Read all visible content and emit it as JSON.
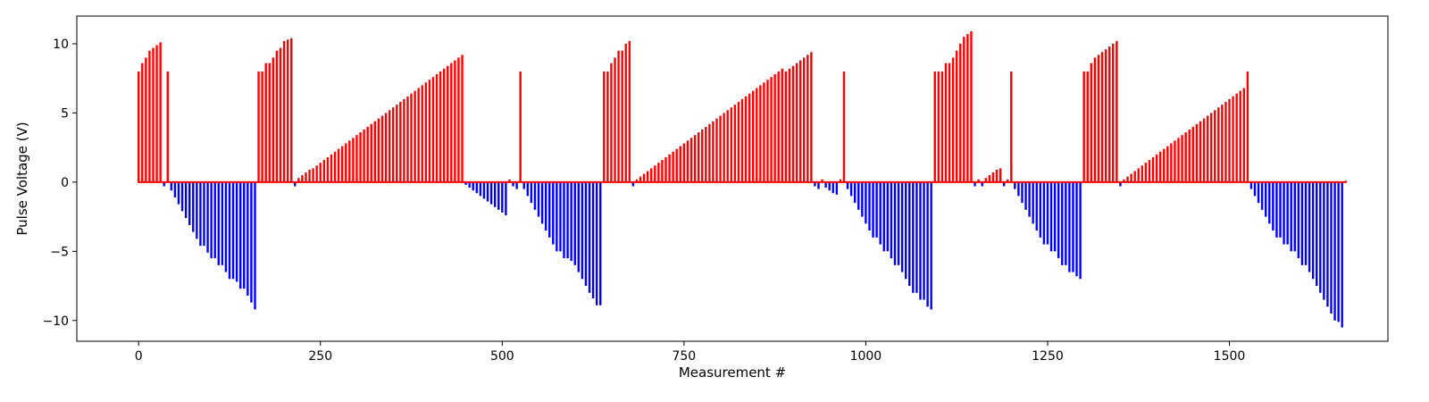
{
  "chart_data": {
    "type": "bar",
    "title": "",
    "xlabel": "Measurement #",
    "ylabel": "Pulse Voltage (V)",
    "xlim": [
      -85,
      1718
    ],
    "ylim": [
      -11.5,
      12
    ],
    "xticks": [
      0,
      250,
      500,
      750,
      1000,
      1250,
      1500
    ],
    "yticks": [
      -10,
      -5,
      0,
      5,
      10
    ],
    "grid": false,
    "legend": "none",
    "colors": {
      "positive": "#ff0000",
      "negative": "#0000ff",
      "frame": "#000000"
    },
    "bars": [
      {
        "x": 0,
        "y": 8.0
      },
      {
        "x": 5,
        "y": 8.6
      },
      {
        "x": 10,
        "y": 9.0
      },
      {
        "x": 15,
        "y": 9.5
      },
      {
        "x": 20,
        "y": 9.7
      },
      {
        "x": 25,
        "y": 9.9
      },
      {
        "x": 30,
        "y": 10.1
      },
      {
        "x": 35,
        "y": -0.3
      },
      {
        "x": 40,
        "y": 8.0
      },
      {
        "x": 45,
        "y": -0.6
      },
      {
        "x": 50,
        "y": -1.1
      },
      {
        "x": 55,
        "y": -1.6
      },
      {
        "x": 60,
        "y": -2.1
      },
      {
        "x": 65,
        "y": -2.6
      },
      {
        "x": 70,
        "y": -3.1
      },
      {
        "x": 75,
        "y": -3.6
      },
      {
        "x": 80,
        "y": -4.1
      },
      {
        "x": 85,
        "y": -4.6
      },
      {
        "x": 90,
        "y": -4.6
      },
      {
        "x": 95,
        "y": -5.1
      },
      {
        "x": 100,
        "y": -5.5
      },
      {
        "x": 105,
        "y": -5.5
      },
      {
        "x": 110,
        "y": -6.0
      },
      {
        "x": 115,
        "y": -6.0
      },
      {
        "x": 120,
        "y": -6.5
      },
      {
        "x": 125,
        "y": -7.0
      },
      {
        "x": 130,
        "y": -7.0
      },
      {
        "x": 135,
        "y": -7.2
      },
      {
        "x": 140,
        "y": -7.7
      },
      {
        "x": 145,
        "y": -7.7
      },
      {
        "x": 150,
        "y": -8.2
      },
      {
        "x": 155,
        "y": -8.7
      },
      {
        "x": 160,
        "y": -9.2
      },
      {
        "x": 165,
        "y": 8.0
      },
      {
        "x": 170,
        "y": 8.0
      },
      {
        "x": 175,
        "y": 8.6
      },
      {
        "x": 180,
        "y": 8.6
      },
      {
        "x": 185,
        "y": 9.0
      },
      {
        "x": 190,
        "y": 9.5
      },
      {
        "x": 195,
        "y": 9.7
      },
      {
        "x": 200,
        "y": 10.2
      },
      {
        "x": 205,
        "y": 10.3
      },
      {
        "x": 210,
        "y": 10.4
      },
      {
        "x": 215,
        "y": -0.3
      },
      {
        "x": 220,
        "y": 0.3
      },
      {
        "x": 225,
        "y": 0.5
      },
      {
        "x": 230,
        "y": 0.7
      },
      {
        "x": 235,
        "y": 0.9
      },
      {
        "x": 240,
        "y": 1.0
      },
      {
        "x": 245,
        "y": 1.2
      },
      {
        "x": 250,
        "y": 1.4
      },
      {
        "x": 255,
        "y": 1.6
      },
      {
        "x": 260,
        "y": 1.8
      },
      {
        "x": 265,
        "y": 2.0
      },
      {
        "x": 270,
        "y": 2.2
      },
      {
        "x": 275,
        "y": 2.4
      },
      {
        "x": 280,
        "y": 2.6
      },
      {
        "x": 285,
        "y": 2.8
      },
      {
        "x": 290,
        "y": 3.0
      },
      {
        "x": 295,
        "y": 3.2
      },
      {
        "x": 300,
        "y": 3.4
      },
      {
        "x": 305,
        "y": 3.6
      },
      {
        "x": 310,
        "y": 3.8
      },
      {
        "x": 315,
        "y": 4.0
      },
      {
        "x": 320,
        "y": 4.2
      },
      {
        "x": 325,
        "y": 4.4
      },
      {
        "x": 330,
        "y": 4.6
      },
      {
        "x": 335,
        "y": 4.8
      },
      {
        "x": 340,
        "y": 5.0
      },
      {
        "x": 345,
        "y": 5.2
      },
      {
        "x": 350,
        "y": 5.4
      },
      {
        "x": 355,
        "y": 5.6
      },
      {
        "x": 360,
        "y": 5.8
      },
      {
        "x": 365,
        "y": 6.0
      },
      {
        "x": 370,
        "y": 6.2
      },
      {
        "x": 375,
        "y": 6.4
      },
      {
        "x": 380,
        "y": 6.6
      },
      {
        "x": 385,
        "y": 6.8
      },
      {
        "x": 390,
        "y": 7.0
      },
      {
        "x": 395,
        "y": 7.2
      },
      {
        "x": 400,
        "y": 7.4
      },
      {
        "x": 405,
        "y": 7.6
      },
      {
        "x": 410,
        "y": 7.8
      },
      {
        "x": 415,
        "y": 8.0
      },
      {
        "x": 420,
        "y": 8.2
      },
      {
        "x": 425,
        "y": 8.4
      },
      {
        "x": 430,
        "y": 8.6
      },
      {
        "x": 435,
        "y": 8.8
      },
      {
        "x": 440,
        "y": 9.0
      },
      {
        "x": 445,
        "y": 9.2
      },
      {
        "x": 450,
        "y": -0.2
      },
      {
        "x": 455,
        "y": -0.4
      },
      {
        "x": 460,
        "y": -0.6
      },
      {
        "x": 465,
        "y": -0.8
      },
      {
        "x": 470,
        "y": -1.0
      },
      {
        "x": 475,
        "y": -1.2
      },
      {
        "x": 480,
        "y": -1.4
      },
      {
        "x": 485,
        "y": -1.6
      },
      {
        "x": 490,
        "y": -1.8
      },
      {
        "x": 495,
        "y": -2.0
      },
      {
        "x": 500,
        "y": -2.2
      },
      {
        "x": 505,
        "y": -2.4
      },
      {
        "x": 510,
        "y": 0.2
      },
      {
        "x": 515,
        "y": -0.3
      },
      {
        "x": 520,
        "y": -0.5
      },
      {
        "x": 525,
        "y": 8.0
      },
      {
        "x": 530,
        "y": -0.5
      },
      {
        "x": 535,
        "y": -1.0
      },
      {
        "x": 540,
        "y": -1.5
      },
      {
        "x": 545,
        "y": -2.0
      },
      {
        "x": 550,
        "y": -2.5
      },
      {
        "x": 555,
        "y": -3.0
      },
      {
        "x": 560,
        "y": -3.5
      },
      {
        "x": 565,
        "y": -4.0
      },
      {
        "x": 570,
        "y": -4.5
      },
      {
        "x": 575,
        "y": -5.0
      },
      {
        "x": 580,
        "y": -5.0
      },
      {
        "x": 585,
        "y": -5.5
      },
      {
        "x": 590,
        "y": -5.5
      },
      {
        "x": 595,
        "y": -5.7
      },
      {
        "x": 600,
        "y": -6.0
      },
      {
        "x": 605,
        "y": -6.5
      },
      {
        "x": 610,
        "y": -7.0
      },
      {
        "x": 615,
        "y": -7.5
      },
      {
        "x": 620,
        "y": -8.0
      },
      {
        "x": 625,
        "y": -8.4
      },
      {
        "x": 630,
        "y": -8.9
      },
      {
        "x": 635,
        "y": -8.9
      },
      {
        "x": 640,
        "y": 8.0
      },
      {
        "x": 645,
        "y": 8.0
      },
      {
        "x": 650,
        "y": 8.6
      },
      {
        "x": 655,
        "y": 9.0
      },
      {
        "x": 660,
        "y": 9.5
      },
      {
        "x": 665,
        "y": 9.5
      },
      {
        "x": 670,
        "y": 10.0
      },
      {
        "x": 675,
        "y": 10.2
      },
      {
        "x": 680,
        "y": -0.3
      },
      {
        "x": 685,
        "y": 0.2
      },
      {
        "x": 690,
        "y": 0.4
      },
      {
        "x": 695,
        "y": 0.6
      },
      {
        "x": 700,
        "y": 0.8
      },
      {
        "x": 705,
        "y": 1.0
      },
      {
        "x": 710,
        "y": 1.2
      },
      {
        "x": 715,
        "y": 1.4
      },
      {
        "x": 720,
        "y": 1.6
      },
      {
        "x": 725,
        "y": 1.8
      },
      {
        "x": 730,
        "y": 2.0
      },
      {
        "x": 735,
        "y": 2.2
      },
      {
        "x": 740,
        "y": 2.4
      },
      {
        "x": 745,
        "y": 2.6
      },
      {
        "x": 750,
        "y": 2.8
      },
      {
        "x": 755,
        "y": 3.0
      },
      {
        "x": 760,
        "y": 3.2
      },
      {
        "x": 765,
        "y": 3.4
      },
      {
        "x": 770,
        "y": 3.6
      },
      {
        "x": 775,
        "y": 3.8
      },
      {
        "x": 780,
        "y": 4.0
      },
      {
        "x": 785,
        "y": 4.2
      },
      {
        "x": 790,
        "y": 4.4
      },
      {
        "x": 795,
        "y": 4.6
      },
      {
        "x": 800,
        "y": 4.8
      },
      {
        "x": 805,
        "y": 5.0
      },
      {
        "x": 810,
        "y": 5.2
      },
      {
        "x": 815,
        "y": 5.4
      },
      {
        "x": 820,
        "y": 5.6
      },
      {
        "x": 825,
        "y": 5.8
      },
      {
        "x": 830,
        "y": 6.0
      },
      {
        "x": 835,
        "y": 6.2
      },
      {
        "x": 840,
        "y": 6.4
      },
      {
        "x": 845,
        "y": 6.6
      },
      {
        "x": 850,
        "y": 6.8
      },
      {
        "x": 855,
        "y": 7.0
      },
      {
        "x": 860,
        "y": 7.2
      },
      {
        "x": 865,
        "y": 7.4
      },
      {
        "x": 870,
        "y": 7.6
      },
      {
        "x": 875,
        "y": 7.8
      },
      {
        "x": 880,
        "y": 8.0
      },
      {
        "x": 885,
        "y": 8.2
      },
      {
        "x": 890,
        "y": 8.0
      },
      {
        "x": 895,
        "y": 8.2
      },
      {
        "x": 900,
        "y": 8.4
      },
      {
        "x": 905,
        "y": 8.6
      },
      {
        "x": 910,
        "y": 8.8
      },
      {
        "x": 915,
        "y": 9.0
      },
      {
        "x": 920,
        "y": 9.2
      },
      {
        "x": 925,
        "y": 9.4
      },
      {
        "x": 930,
        "y": -0.3
      },
      {
        "x": 935,
        "y": -0.5
      },
      {
        "x": 940,
        "y": 0.2
      },
      {
        "x": 945,
        "y": -0.4
      },
      {
        "x": 950,
        "y": -0.6
      },
      {
        "x": 955,
        "y": -0.8
      },
      {
        "x": 960,
        "y": -0.9
      },
      {
        "x": 965,
        "y": 0.2
      },
      {
        "x": 970,
        "y": 8.0
      },
      {
        "x": 975,
        "y": -0.5
      },
      {
        "x": 980,
        "y": -1.0
      },
      {
        "x": 985,
        "y": -1.5
      },
      {
        "x": 990,
        "y": -2.0
      },
      {
        "x": 995,
        "y": -2.5
      },
      {
        "x": 1000,
        "y": -3.0
      },
      {
        "x": 1005,
        "y": -3.5
      },
      {
        "x": 1010,
        "y": -4.0
      },
      {
        "x": 1015,
        "y": -4.0
      },
      {
        "x": 1020,
        "y": -4.5
      },
      {
        "x": 1025,
        "y": -5.0
      },
      {
        "x": 1030,
        "y": -5.0
      },
      {
        "x": 1035,
        "y": -5.5
      },
      {
        "x": 1040,
        "y": -6.0
      },
      {
        "x": 1045,
        "y": -6.0
      },
      {
        "x": 1050,
        "y": -6.5
      },
      {
        "x": 1055,
        "y": -7.0
      },
      {
        "x": 1060,
        "y": -7.5
      },
      {
        "x": 1065,
        "y": -8.0
      },
      {
        "x": 1070,
        "y": -8.0
      },
      {
        "x": 1075,
        "y": -8.5
      },
      {
        "x": 1080,
        "y": -8.5
      },
      {
        "x": 1085,
        "y": -9.0
      },
      {
        "x": 1090,
        "y": -9.2
      },
      {
        "x": 1095,
        "y": 8.0
      },
      {
        "x": 1100,
        "y": 8.0
      },
      {
        "x": 1105,
        "y": 8.0
      },
      {
        "x": 1110,
        "y": 8.6
      },
      {
        "x": 1115,
        "y": 8.6
      },
      {
        "x": 1120,
        "y": 9.0
      },
      {
        "x": 1125,
        "y": 9.5
      },
      {
        "x": 1130,
        "y": 10.0
      },
      {
        "x": 1135,
        "y": 10.5
      },
      {
        "x": 1140,
        "y": 10.7
      },
      {
        "x": 1145,
        "y": 10.9
      },
      {
        "x": 1150,
        "y": -0.3
      },
      {
        "x": 1155,
        "y": 0.2
      },
      {
        "x": 1160,
        "y": -0.3
      },
      {
        "x": 1165,
        "y": 0.3
      },
      {
        "x": 1170,
        "y": 0.5
      },
      {
        "x": 1175,
        "y": 0.7
      },
      {
        "x": 1180,
        "y": 0.9
      },
      {
        "x": 1185,
        "y": 1.0
      },
      {
        "x": 1190,
        "y": -0.3
      },
      {
        "x": 1195,
        "y": 0.2
      },
      {
        "x": 1200,
        "y": 8.0
      },
      {
        "x": 1205,
        "y": -0.5
      },
      {
        "x": 1210,
        "y": -1.0
      },
      {
        "x": 1215,
        "y": -1.5
      },
      {
        "x": 1220,
        "y": -2.0
      },
      {
        "x": 1225,
        "y": -2.5
      },
      {
        "x": 1230,
        "y": -3.0
      },
      {
        "x": 1235,
        "y": -3.5
      },
      {
        "x": 1240,
        "y": -4.0
      },
      {
        "x": 1245,
        "y": -4.5
      },
      {
        "x": 1250,
        "y": -4.5
      },
      {
        "x": 1255,
        "y": -5.0
      },
      {
        "x": 1260,
        "y": -5.0
      },
      {
        "x": 1265,
        "y": -5.5
      },
      {
        "x": 1270,
        "y": -6.0
      },
      {
        "x": 1275,
        "y": -6.0
      },
      {
        "x": 1280,
        "y": -6.5
      },
      {
        "x": 1285,
        "y": -6.5
      },
      {
        "x": 1290,
        "y": -6.8
      },
      {
        "x": 1295,
        "y": -7.0
      },
      {
        "x": 1300,
        "y": 8.0
      },
      {
        "x": 1305,
        "y": 8.0
      },
      {
        "x": 1310,
        "y": 8.6
      },
      {
        "x": 1315,
        "y": 9.0
      },
      {
        "x": 1320,
        "y": 9.2
      },
      {
        "x": 1325,
        "y": 9.4
      },
      {
        "x": 1330,
        "y": 9.6
      },
      {
        "x": 1335,
        "y": 9.8
      },
      {
        "x": 1340,
        "y": 10.0
      },
      {
        "x": 1345,
        "y": 10.2
      },
      {
        "x": 1350,
        "y": -0.3
      },
      {
        "x": 1355,
        "y": 0.2
      },
      {
        "x": 1360,
        "y": 0.4
      },
      {
        "x": 1365,
        "y": 0.6
      },
      {
        "x": 1370,
        "y": 0.8
      },
      {
        "x": 1375,
        "y": 1.0
      },
      {
        "x": 1380,
        "y": 1.2
      },
      {
        "x": 1385,
        "y": 1.4
      },
      {
        "x": 1390,
        "y": 1.6
      },
      {
        "x": 1395,
        "y": 1.8
      },
      {
        "x": 1400,
        "y": 2.0
      },
      {
        "x": 1405,
        "y": 2.2
      },
      {
        "x": 1410,
        "y": 2.4
      },
      {
        "x": 1415,
        "y": 2.6
      },
      {
        "x": 1420,
        "y": 2.8
      },
      {
        "x": 1425,
        "y": 3.0
      },
      {
        "x": 1430,
        "y": 3.2
      },
      {
        "x": 1435,
        "y": 3.4
      },
      {
        "x": 1440,
        "y": 3.6
      },
      {
        "x": 1445,
        "y": 3.8
      },
      {
        "x": 1450,
        "y": 4.0
      },
      {
        "x": 1455,
        "y": 4.2
      },
      {
        "x": 1460,
        "y": 4.4
      },
      {
        "x": 1465,
        "y": 4.6
      },
      {
        "x": 1470,
        "y": 4.8
      },
      {
        "x": 1475,
        "y": 5.0
      },
      {
        "x": 1480,
        "y": 5.2
      },
      {
        "x": 1485,
        "y": 5.4
      },
      {
        "x": 1490,
        "y": 5.6
      },
      {
        "x": 1495,
        "y": 5.8
      },
      {
        "x": 1500,
        "y": 6.0
      },
      {
        "x": 1505,
        "y": 6.2
      },
      {
        "x": 1510,
        "y": 6.4
      },
      {
        "x": 1515,
        "y": 6.6
      },
      {
        "x": 1520,
        "y": 6.8
      },
      {
        "x": 1525,
        "y": 8.0
      },
      {
        "x": 1530,
        "y": -0.5
      },
      {
        "x": 1535,
        "y": -1.0
      },
      {
        "x": 1540,
        "y": -1.5
      },
      {
        "x": 1545,
        "y": -2.0
      },
      {
        "x": 1550,
        "y": -2.5
      },
      {
        "x": 1555,
        "y": -3.0
      },
      {
        "x": 1560,
        "y": -3.5
      },
      {
        "x": 1565,
        "y": -4.0
      },
      {
        "x": 1570,
        "y": -4.0
      },
      {
        "x": 1575,
        "y": -4.5
      },
      {
        "x": 1580,
        "y": -4.5
      },
      {
        "x": 1585,
        "y": -5.0
      },
      {
        "x": 1590,
        "y": -5.0
      },
      {
        "x": 1595,
        "y": -5.5
      },
      {
        "x": 1600,
        "y": -6.0
      },
      {
        "x": 1605,
        "y": -6.0
      },
      {
        "x": 1610,
        "y": -6.5
      },
      {
        "x": 1615,
        "y": -7.0
      },
      {
        "x": 1620,
        "y": -7.5
      },
      {
        "x": 1625,
        "y": -8.0
      },
      {
        "x": 1630,
        "y": -8.5
      },
      {
        "x": 1635,
        "y": -9.0
      },
      {
        "x": 1640,
        "y": -9.5
      },
      {
        "x": 1645,
        "y": -10.0
      },
      {
        "x": 1650,
        "y": -10.1
      },
      {
        "x": 1655,
        "y": -10.5
      },
      {
        "x": 1660,
        "y": 0.1
      }
    ]
  }
}
